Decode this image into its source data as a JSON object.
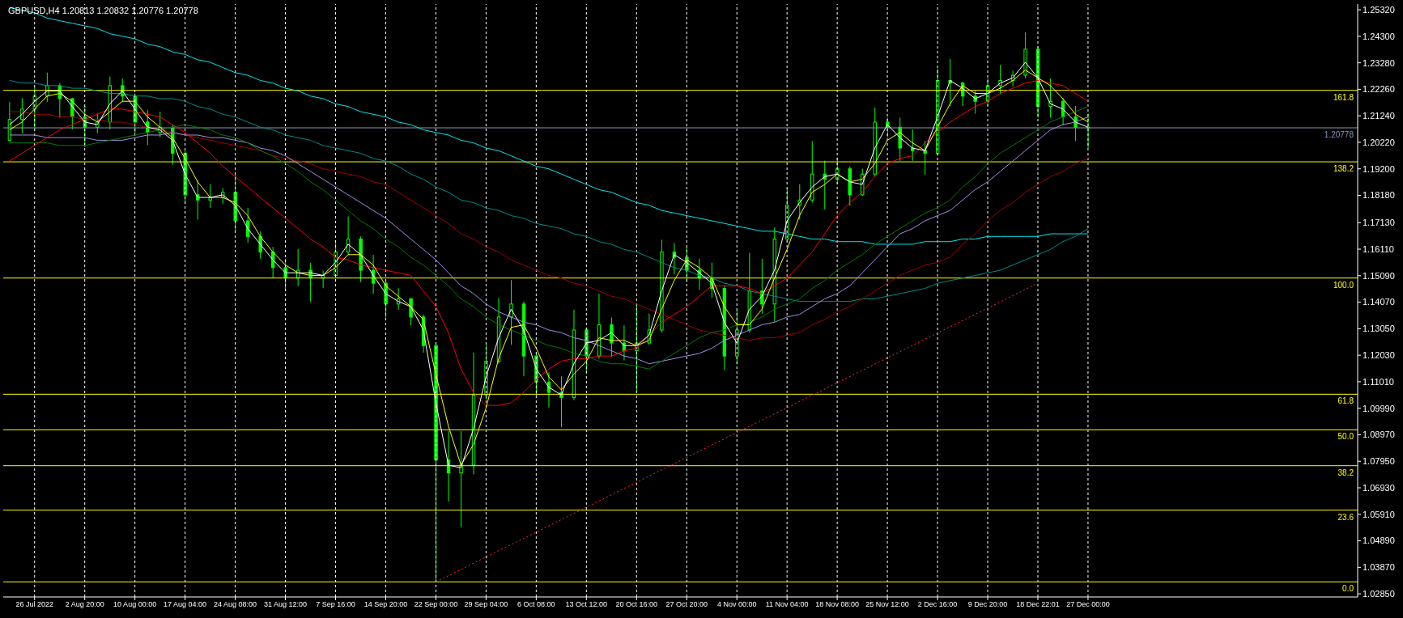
{
  "chart_data": {
    "type": "candlestick",
    "title": "GBPUSD,H4 1.20813 1.20832 1.20776 1.20778",
    "categories": [
      null,
      null,
      "26 Jul 2022",
      null,
      null,
      null,
      "2 Aug 20:00",
      null,
      null,
      null,
      "10 Aug 00:00",
      null,
      null,
      null,
      "17 Aug 04:00",
      null,
      null,
      null,
      "24 Aug 08:00",
      null,
      null,
      null,
      "31 Aug 12:00",
      null,
      null,
      null,
      "7 Sep 16:00",
      null,
      null,
      null,
      "14 Sep 20:00",
      null,
      null,
      null,
      "22 Sep 00:00",
      null,
      null,
      null,
      "29 Sep 04:00",
      null,
      null,
      null,
      "6 Oct 08:00",
      null,
      null,
      null,
      "13 Oct 12:00",
      null,
      null,
      null,
      "20 Oct 16:00",
      null,
      null,
      null,
      "27 Oct 20:00",
      null,
      null,
      null,
      "4 Nov 00:00",
      null,
      null,
      null,
      "11 Nov 04:00",
      null,
      null,
      null,
      "18 Nov 08:00",
      null,
      null,
      null,
      "25 Nov 12:00",
      null,
      null,
      null,
      "2 Dec 16:00",
      null,
      null,
      null,
      "9 Dec 20:00",
      null,
      null,
      null,
      "18 Dec 22:01",
      null,
      null,
      null,
      "27 Dec 00:00",
      null,
      null,
      null,
      null,
      null,
      null,
      null,
      null,
      null,
      null,
      null,
      null,
      null,
      null,
      null,
      null,
      null,
      null,
      null,
      null,
      null
    ],
    "color": "#00ff00",
    "ohlc": [
      [
        1.203,
        1.2177,
        1.2026,
        1.211
      ],
      [
        1.211,
        1.2192,
        1.2057,
        1.215
      ],
      [
        1.215,
        1.2237,
        1.2072,
        1.22
      ],
      [
        1.22,
        1.229,
        1.2177,
        1.224
      ],
      [
        1.224,
        1.225,
        1.2117,
        1.219
      ],
      [
        1.219,
        1.2192,
        1.2072,
        1.212
      ],
      [
        1.212,
        1.2162,
        1.2004,
        1.208
      ],
      [
        1.208,
        1.2132,
        1.2057,
        1.21
      ],
      [
        1.21,
        1.2275,
        1.2072,
        1.224
      ],
      [
        1.224,
        1.2268,
        1.2177,
        1.22
      ],
      [
        1.22,
        1.221,
        1.2057,
        1.21
      ],
      [
        1.21,
        1.2147,
        1.2011,
        1.206
      ],
      [
        1.206,
        1.214,
        1.2042,
        1.208
      ],
      [
        1.208,
        1.209,
        1.1936,
        1.198
      ],
      [
        1.198,
        1.199,
        1.1785,
        1.182
      ],
      [
        1.182,
        1.1876,
        1.1725,
        1.18
      ],
      [
        1.18,
        1.1861,
        1.177,
        1.181
      ],
      [
        1.181,
        1.1846,
        1.1785,
        1.183
      ],
      [
        1.183,
        1.1898,
        1.168,
        1.172
      ],
      [
        1.172,
        1.177,
        1.1635,
        1.166
      ],
      [
        1.166,
        1.168,
        1.1574,
        1.16
      ],
      [
        1.16,
        1.162,
        1.1499,
        1.154
      ],
      [
        1.154,
        1.1574,
        1.1454,
        1.15
      ],
      [
        1.15,
        1.1612,
        1.1469,
        1.153
      ],
      [
        1.153,
        1.1559,
        1.1409,
        1.15
      ],
      [
        1.15,
        1.1529,
        1.1461,
        1.151
      ],
      [
        1.151,
        1.1635,
        1.15,
        1.16
      ],
      [
        1.16,
        1.1737,
        1.1589,
        1.165
      ],
      [
        1.165,
        1.166,
        1.1484,
        1.153
      ],
      [
        1.153,
        1.1589,
        1.1439,
        1.148
      ],
      [
        1.148,
        1.149,
        1.1348,
        1.14
      ],
      [
        1.14,
        1.1461,
        1.1378,
        1.142
      ],
      [
        1.142,
        1.1424,
        1.1318,
        1.135
      ],
      [
        1.135,
        1.136,
        1.1213,
        1.124
      ],
      [
        1.124,
        1.125,
        1.0331,
        1.08
      ],
      [
        1.08,
        1.0911,
        1.064,
        1.075
      ],
      [
        1.075,
        1.0911,
        1.0542,
        1.078
      ],
      [
        1.078,
        1.1213,
        1.0745,
        1.105
      ],
      [
        1.105,
        1.1243,
        1.1032,
        1.118
      ],
      [
        1.118,
        1.1424,
        1.117,
        1.135
      ],
      [
        1.135,
        1.1492,
        1.1243,
        1.14
      ],
      [
        1.14,
        1.141,
        1.1122,
        1.12
      ],
      [
        1.12,
        1.1213,
        1.1047,
        1.11
      ],
      [
        1.11,
        1.1137,
        1.1002,
        1.106
      ],
      [
        1.106,
        1.1122,
        1.0926,
        1.104
      ],
      [
        1.104,
        1.1378,
        1.103,
        1.13
      ],
      [
        1.13,
        1.131,
        1.1137,
        1.12
      ],
      [
        1.12,
        1.1439,
        1.119,
        1.132
      ],
      [
        1.132,
        1.1348,
        1.1198,
        1.125
      ],
      [
        1.125,
        1.1318,
        1.1183,
        1.122
      ],
      [
        1.122,
        1.1401,
        1.1062,
        1.125
      ],
      [
        1.125,
        1.1363,
        1.1243,
        1.13
      ],
      [
        1.13,
        1.1647,
        1.129,
        1.16
      ],
      [
        1.16,
        1.1635,
        1.1514,
        1.158
      ],
      [
        1.158,
        1.162,
        1.1484,
        1.153
      ],
      [
        1.153,
        1.1574,
        1.1454,
        1.15
      ],
      [
        1.15,
        1.1559,
        1.1424,
        1.146
      ],
      [
        1.146,
        1.147,
        1.1145,
        1.12
      ],
      [
        1.12,
        1.1378,
        1.1168,
        1.13
      ],
      [
        1.13,
        1.1597,
        1.129,
        1.145
      ],
      [
        1.145,
        1.1574,
        1.1363,
        1.14
      ],
      [
        1.14,
        1.1695,
        1.1333,
        1.165
      ],
      [
        1.165,
        1.1846,
        1.164,
        1.178
      ],
      [
        1.178,
        1.1861,
        1.1725,
        1.18
      ],
      [
        1.18,
        1.2027,
        1.179,
        1.19
      ],
      [
        1.19,
        1.1951,
        1.1763,
        1.188
      ],
      [
        1.188,
        1.1962,
        1.1861,
        1.192
      ],
      [
        1.192,
        1.193,
        1.1778,
        1.182
      ],
      [
        1.182,
        1.1921,
        1.1815,
        1.19
      ],
      [
        1.19,
        1.2155,
        1.189,
        1.21
      ],
      [
        1.21,
        1.2117,
        1.2042,
        1.208
      ],
      [
        1.208,
        1.2117,
        1.1951,
        1.2
      ],
      [
        1.2,
        1.2072,
        1.1951,
        1.199
      ],
      [
        1.199,
        1.2027,
        1.1898,
        1.198
      ],
      [
        1.198,
        1.2305,
        1.197,
        1.226
      ],
      [
        1.226,
        1.2343,
        1.2162,
        1.225
      ],
      [
        1.225,
        1.2255,
        1.2162,
        1.22
      ],
      [
        1.22,
        1.2222,
        1.2132,
        1.218
      ],
      [
        1.218,
        1.2268,
        1.2162,
        1.224
      ],
      [
        1.224,
        1.232,
        1.2207,
        1.226
      ],
      [
        1.226,
        1.2298,
        1.2237,
        1.228
      ],
      [
        1.228,
        1.2445,
        1.2268,
        1.238
      ],
      [
        1.238,
        1.239,
        1.2117,
        1.216
      ],
      [
        1.216,
        1.2268,
        1.2117,
        1.218
      ],
      [
        1.218,
        1.2192,
        1.2087,
        1.212
      ],
      [
        1.212,
        1.2162,
        1.2027,
        1.208
      ],
      [
        1.208,
        1.2132,
        1.2,
        1.20778
      ],
      null,
      null,
      null,
      null,
      null,
      null,
      null,
      null,
      null,
      null,
      null,
      null,
      null,
      null,
      null,
      null,
      null,
      null,
      null,
      null,
      null
    ],
    "series": [
      {
        "type": "line",
        "color": "#00e5ee",
        "values": [
          1.254,
          1.253,
          1.252,
          1.25,
          1.249,
          1.248,
          1.247,
          1.246,
          1.244,
          1.243,
          1.242,
          1.24,
          1.239,
          1.237,
          1.236,
          1.234,
          1.233,
          1.231,
          1.229,
          1.228,
          1.226,
          1.225,
          1.223,
          1.222,
          1.22,
          1.219,
          1.217,
          1.216,
          1.214,
          1.213,
          1.212,
          1.21,
          1.209,
          1.207,
          1.206,
          1.205,
          1.203,
          1.202,
          1.2,
          1.199,
          1.197,
          1.195,
          1.193,
          1.192,
          1.19,
          1.188,
          1.186,
          1.184,
          1.183,
          1.181,
          1.179,
          1.178,
          1.176,
          1.175,
          1.174,
          1.173,
          1.172,
          1.171,
          1.17,
          1.169,
          1.168,
          1.168,
          1.167,
          1.166,
          1.165,
          1.165,
          1.164,
          1.164,
          1.164,
          1.163,
          1.163,
          1.163,
          1.163,
          1.164,
          1.164,
          1.164,
          1.165,
          1.165,
          1.166,
          1.166,
          1.166,
          1.166,
          1.166,
          1.167,
          1.167,
          1.167,
          1.167,
          null,
          null,
          null,
          null,
          null,
          null,
          null,
          null,
          null,
          null,
          null,
          null,
          null,
          null,
          null,
          null,
          null,
          null,
          null,
          null,
          null
        ]
      },
      {
        "type": "line",
        "color": "#008b8b",
        "values": [
          1.226,
          1.225,
          1.225,
          1.224,
          1.224,
          1.223,
          1.223,
          1.222,
          1.221,
          1.221,
          1.22,
          1.22,
          1.219,
          1.219,
          1.218,
          1.216,
          1.215,
          1.213,
          1.212,
          1.21,
          1.208,
          1.207,
          1.205,
          1.204,
          1.203,
          1.201,
          1.2,
          1.199,
          1.198,
          1.196,
          1.195,
          1.193,
          1.19,
          1.188,
          1.185,
          1.183,
          1.18,
          1.179,
          1.177,
          1.176,
          1.174,
          1.173,
          1.171,
          1.17,
          1.169,
          1.167,
          1.166,
          1.164,
          1.163,
          1.161,
          1.16,
          1.158,
          1.156,
          1.154,
          1.153,
          1.151,
          1.15,
          1.148,
          1.147,
          1.145,
          1.144,
          1.143,
          1.142,
          1.141,
          1.141,
          1.141,
          1.141,
          1.141,
          1.142,
          1.142,
          1.143,
          1.144,
          1.145,
          1.146,
          1.148,
          1.149,
          1.15,
          1.151,
          1.152,
          1.153,
          1.155,
          1.157,
          1.159,
          1.161,
          1.164,
          1.166,
          1.169,
          null,
          null,
          null,
          null,
          null,
          null,
          null,
          null,
          null,
          null,
          null,
          null,
          null,
          null,
          null,
          null,
          null,
          null,
          null,
          null,
          null
        ]
      },
      {
        "type": "line",
        "color": "#a00000",
        "values": [
          1.214,
          1.214,
          1.213,
          1.213,
          1.212,
          1.212,
          1.211,
          1.211,
          1.21,
          1.21,
          1.209,
          1.208,
          1.207,
          1.206,
          1.205,
          1.204,
          1.203,
          1.202,
          1.201,
          1.2,
          1.199,
          1.197,
          1.196,
          1.195,
          1.194,
          1.192,
          1.191,
          1.19,
          1.189,
          1.187,
          1.186,
          1.183,
          1.18,
          1.177,
          1.174,
          1.171,
          1.167,
          1.165,
          1.162,
          1.16,
          1.157,
          1.155,
          1.153,
          1.151,
          1.15,
          1.148,
          1.147,
          1.145,
          1.143,
          1.142,
          1.14,
          1.138,
          1.136,
          1.134,
          1.132,
          1.13,
          1.129,
          1.128,
          1.127,
          1.126,
          1.127,
          1.127,
          1.128,
          1.129,
          1.132,
          1.134,
          1.137,
          1.139,
          1.142,
          1.145,
          1.148,
          1.151,
          1.153,
          1.155,
          1.156,
          1.158,
          1.163,
          1.167,
          1.172,
          1.176,
          1.179,
          1.183,
          1.186,
          1.189,
          1.191,
          1.194,
          1.196,
          null,
          null,
          null,
          null,
          null,
          null,
          null,
          null,
          null,
          null,
          null,
          null,
          null,
          null,
          null,
          null,
          null,
          null,
          null,
          null,
          null
        ]
      },
      {
        "type": "line",
        "color": "#9f8fe8",
        "values": [
          1.205,
          1.205,
          1.205,
          1.204,
          1.204,
          1.204,
          1.204,
          1.203,
          1.203,
          1.203,
          1.204,
          1.205,
          1.205,
          1.206,
          1.205,
          1.205,
          1.204,
          1.204,
          1.203,
          1.202,
          1.2,
          1.199,
          1.197,
          1.194,
          1.191,
          1.188,
          1.185,
          1.182,
          1.179,
          1.176,
          1.173,
          1.169,
          1.165,
          1.161,
          1.157,
          1.152,
          1.147,
          1.144,
          1.14,
          1.137,
          1.135,
          1.133,
          1.132,
          1.13,
          1.129,
          1.127,
          1.126,
          1.124,
          1.122,
          1.12,
          1.119,
          1.117,
          1.118,
          1.119,
          1.12,
          1.121,
          1.123,
          1.126,
          1.128,
          1.13,
          1.132,
          1.133,
          1.135,
          1.136,
          1.139,
          1.142,
          1.144,
          1.147,
          1.152,
          1.157,
          1.162,
          1.167,
          1.169,
          1.172,
          1.174,
          1.176,
          1.18,
          1.184,
          1.187,
          1.191,
          1.195,
          1.199,
          1.203,
          1.207,
          1.209,
          1.21,
          1.212,
          null,
          null,
          null,
          null,
          null,
          null,
          null,
          null,
          null,
          null,
          null,
          null,
          null,
          null,
          null,
          null,
          null,
          null,
          null,
          null,
          null
        ]
      },
      {
        "type": "line",
        "color": "#007a00",
        "values": [
          1.202,
          1.202,
          1.202,
          1.202,
          1.201,
          1.201,
          1.201,
          1.202,
          1.203,
          1.204,
          1.205,
          1.206,
          1.207,
          1.208,
          1.209,
          1.208,
          1.207,
          1.205,
          1.204,
          1.202,
          1.199,
          1.197,
          1.194,
          1.191,
          1.187,
          1.184,
          1.18,
          1.176,
          1.172,
          1.169,
          1.165,
          1.162,
          1.158,
          1.155,
          1.151,
          1.147,
          1.142,
          1.139,
          1.135,
          1.132,
          1.13,
          1.128,
          1.126,
          1.124,
          1.123,
          1.121,
          1.12,
          1.118,
          1.117,
          1.117,
          1.116,
          1.115,
          1.118,
          1.121,
          1.124,
          1.127,
          1.129,
          1.13,
          1.132,
          1.133,
          1.135,
          1.138,
          1.14,
          1.142,
          1.146,
          1.149,
          1.153,
          1.156,
          1.159,
          1.163,
          1.166,
          1.169,
          1.172,
          1.175,
          1.177,
          1.18,
          1.185,
          1.189,
          1.194,
          1.198,
          1.201,
          1.204,
          1.207,
          1.21,
          1.212,
          1.214,
          1.216,
          null,
          null,
          null,
          null,
          null,
          null,
          null,
          null,
          null,
          null,
          null,
          null,
          null,
          null,
          null,
          null,
          null,
          null,
          null,
          null,
          null
        ]
      },
      {
        "type": "line",
        "color": "#ff0000",
        "values": [
          1.195,
          1.198,
          1.201,
          1.204,
          1.207,
          1.209,
          1.211,
          1.213,
          1.215,
          1.215,
          1.214,
          1.213,
          1.212,
          1.209,
          1.206,
          1.202,
          1.198,
          1.193,
          1.189,
          1.185,
          1.181,
          1.177,
          1.173,
          1.169,
          1.165,
          1.162,
          1.158,
          1.157,
          1.155,
          1.154,
          1.153,
          1.152,
          1.151,
          1.145,
          1.139,
          1.129,
          1.115,
          1.106,
          1.101,
          1.101,
          1.102,
          1.106,
          1.111,
          1.115,
          1.118,
          1.119,
          1.119,
          1.12,
          1.12,
          1.122,
          1.123,
          1.128,
          1.133,
          1.136,
          1.139,
          1.143,
          1.147,
          1.147,
          1.147,
          1.146,
          1.144,
          1.147,
          1.15,
          1.155,
          1.16,
          1.167,
          1.174,
          1.179,
          1.183,
          1.189,
          1.194,
          1.196,
          1.197,
          1.202,
          1.206,
          1.21,
          1.213,
          1.216,
          1.218,
          1.221,
          1.223,
          1.225,
          1.226,
          1.225,
          1.224,
          1.221,
          1.218,
          null,
          null,
          null,
          null,
          null,
          null,
          null,
          null,
          null,
          null,
          null,
          null,
          null,
          null,
          null,
          null,
          null,
          null,
          null,
          null,
          null
        ]
      },
      {
        "type": "line",
        "color": "#ffff00",
        "values": [
          1.207,
          1.21,
          1.215,
          1.22,
          1.221,
          1.218,
          1.213,
          1.21,
          1.214,
          1.218,
          1.218,
          1.212,
          1.208,
          1.204,
          1.196,
          1.187,
          1.181,
          1.181,
          1.179,
          1.174,
          1.166,
          1.16,
          1.155,
          1.152,
          1.151,
          1.151,
          1.154,
          1.159,
          1.159,
          1.155,
          1.147,
          1.143,
          1.139,
          1.134,
          1.113,
          1.093,
          1.078,
          1.086,
          1.1,
          1.119,
          1.131,
          1.132,
          1.123,
          1.112,
          1.107,
          1.113,
          1.118,
          1.127,
          1.126,
          1.126,
          1.124,
          1.126,
          1.138,
          1.149,
          1.157,
          1.154,
          1.15,
          1.139,
          1.132,
          1.132,
          1.138,
          1.15,
          1.161,
          1.174,
          1.183,
          1.186,
          1.19,
          1.187,
          1.188,
          1.194,
          1.203,
          1.206,
          1.202,
          1.199,
          1.208,
          1.217,
          1.224,
          1.221,
          1.221,
          1.223,
          1.226,
          1.23,
          1.227,
          1.224,
          1.219,
          1.213,
          1.21,
          null,
          null,
          null,
          null,
          null,
          null,
          null,
          null,
          null,
          null,
          null,
          null,
          null,
          null,
          null,
          null,
          null,
          null,
          null,
          null,
          null
        ]
      },
      {
        "type": "line",
        "color": "#ffffff",
        "values": [
          1.209,
          1.213,
          1.218,
          1.222,
          1.222,
          1.216,
          1.21,
          1.209,
          1.217,
          1.222,
          1.215,
          1.208,
          1.207,
          1.203,
          1.19,
          1.181,
          1.181,
          1.182,
          1.178,
          1.169,
          1.163,
          1.157,
          1.152,
          1.152,
          1.152,
          1.151,
          1.156,
          1.163,
          1.159,
          1.151,
          1.144,
          1.141,
          1.139,
          1.13,
          1.102,
          1.078,
          1.077,
          1.092,
          1.112,
          1.127,
          1.138,
          1.13,
          1.115,
          1.108,
          1.105,
          1.117,
          1.125,
          1.126,
          1.129,
          1.124,
          1.124,
          1.128,
          1.145,
          1.159,
          1.156,
          1.152,
          1.148,
          1.133,
          1.125,
          1.138,
          1.143,
          1.153,
          1.172,
          1.179,
          1.185,
          1.189,
          1.19,
          1.187,
          1.186,
          1.2,
          1.209,
          1.204,
          1.2,
          1.199,
          1.212,
          1.226,
          1.223,
          1.219,
          1.221,
          1.225,
          1.227,
          1.233,
          1.227,
          1.217,
          1.215,
          1.21,
          1.208,
          null,
          null,
          null,
          null,
          null,
          null,
          null,
          null,
          null,
          null,
          null,
          null,
          null,
          null,
          null,
          null,
          null,
          null,
          null,
          null,
          null
        ]
      },
      {
        "type": "line",
        "color": "#ff3030",
        "line_style": "dotted",
        "x": [
          "22 Sep 00:00",
          "18 Dec 22:01"
        ],
        "values": [
          1.0331,
          1.148
        ]
      }
    ],
    "ylim": [
      1.0273,
      1.2554
    ],
    "yticks": [
      {
        "value": 1.2532,
        "label": "1.25320"
      },
      {
        "value": 1.243,
        "label": "1.24300"
      },
      {
        "value": 1.2328,
        "label": "1.23280"
      },
      {
        "value": 1.2226,
        "label": "1.22260"
      },
      {
        "value": 1.2124,
        "label": "1.21240"
      },
      {
        "value": 1.2022,
        "label": "1.20220"
      },
      {
        "value": 1.192,
        "label": "1.19200"
      },
      {
        "value": 1.1818,
        "label": "1.18180"
      },
      {
        "value": 1.1713,
        "label": "1.17130"
      },
      {
        "value": 1.1611,
        "label": "1.16110"
      },
      {
        "value": 1.1509,
        "label": "1.15090"
      },
      {
        "value": 1.1407,
        "label": "1.14070"
      },
      {
        "value": 1.1305,
        "label": "1.13050"
      },
      {
        "value": 1.1203,
        "label": "1.12030"
      },
      {
        "value": 1.1101,
        "label": "1.11010"
      },
      {
        "value": 1.0999,
        "label": "1.09990"
      },
      {
        "value": 1.0897,
        "label": "1.08970"
      },
      {
        "value": 1.0795,
        "label": "1.07950"
      },
      {
        "value": 1.0693,
        "label": "1.06930"
      },
      {
        "value": 1.0591,
        "label": "1.05910"
      },
      {
        "value": 1.0489,
        "label": "1.04890"
      },
      {
        "value": 1.0387,
        "label": "1.03870"
      },
      {
        "value": 1.0285,
        "label": "1.02850"
      }
    ],
    "grid": "x",
    "ref_lines": [
      {
        "axis": "y",
        "value": 1.2222,
        "color": "#ffff00"
      },
      {
        "axis": "y",
        "value": 1.1947,
        "color": "#ffff00"
      },
      {
        "axis": "y",
        "value": 1.15,
        "color": "#ffff00"
      },
      {
        "axis": "y",
        "value": 1.1053,
        "color": "#ffff00"
      },
      {
        "axis": "y",
        "value": 1.0916,
        "color": "#ffff00"
      },
      {
        "axis": "y",
        "value": 1.0778,
        "color": "#ffff00"
      },
      {
        "axis": "y",
        "value": 1.0607,
        "color": "#ffff00"
      },
      {
        "axis": "y",
        "value": 1.0331,
        "color": "#ffff00"
      },
      {
        "axis": "y",
        "value": 1.20778,
        "label": "1.20778",
        "color": "#8898b8"
      }
    ],
    "annotations": [
      {
        "text": "161.8",
        "y": 1.2222
      },
      {
        "text": "138.2",
        "y": 1.1947
      },
      {
        "text": "100.0",
        "y": 1.15
      },
      {
        "text": "61.8",
        "y": 1.1053
      },
      {
        "text": "50.0",
        "y": 1.0916
      },
      {
        "text": "38.2",
        "y": 1.0778
      },
      {
        "text": "23.6",
        "y": 1.0607
      },
      {
        "text": "0.0",
        "y": 1.0331
      }
    ]
  }
}
